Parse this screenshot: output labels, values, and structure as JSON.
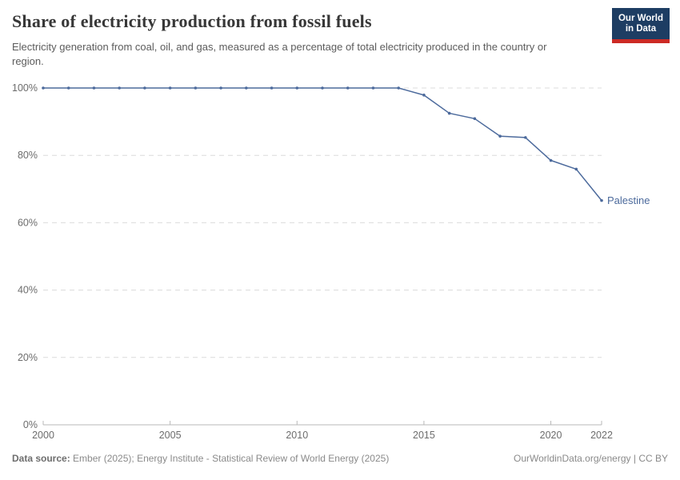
{
  "header": {
    "title": "Share of electricity production from fossil fuels",
    "subtitle": "Electricity generation from coal, oil, and gas, measured as a percentage of total electricity produced in the country or region.",
    "logo": {
      "line1": "Our World",
      "line2": "in Data",
      "bg_color": "#1d3d63",
      "accent_color": "#cc2a25"
    }
  },
  "chart_data": {
    "type": "line",
    "title": "Share of electricity production from fossil fuels",
    "xlabel": "",
    "ylabel": "",
    "x": [
      2000,
      2001,
      2002,
      2003,
      2004,
      2005,
      2006,
      2007,
      2008,
      2009,
      2010,
      2011,
      2012,
      2013,
      2014,
      2015,
      2016,
      2017,
      2018,
      2019,
      2020,
      2021,
      2022
    ],
    "series": [
      {
        "name": "Palestine",
        "color": "#4c6a9c",
        "values": [
          100,
          100,
          100,
          100,
          100,
          100,
          100,
          100,
          100,
          100,
          100,
          100,
          100,
          100,
          100,
          97.9,
          92.5,
          90.9,
          85.7,
          85.3,
          78.5,
          75.9,
          66.6
        ]
      }
    ],
    "xlim": [
      2000,
      2022
    ],
    "ylim": [
      0,
      100
    ],
    "yticks": [
      0,
      20,
      40,
      60,
      80,
      100
    ],
    "xticks": [
      2000,
      2005,
      2010,
      2015,
      2020,
      2022
    ],
    "ytick_suffix": "%",
    "grid": "horizontal-dashed",
    "legend": "end-of-line-label",
    "grid_color": "#dcdcdc",
    "axis_color": "#b9b9b9",
    "tick_label_color": "#6c6c6c"
  },
  "footer": {
    "source_label": "Data source:",
    "source_text": " Ember (2025); Energy Institute - Statistical Review of World Energy (2025)",
    "credit": "OurWorldinData.org/energy | CC BY"
  }
}
